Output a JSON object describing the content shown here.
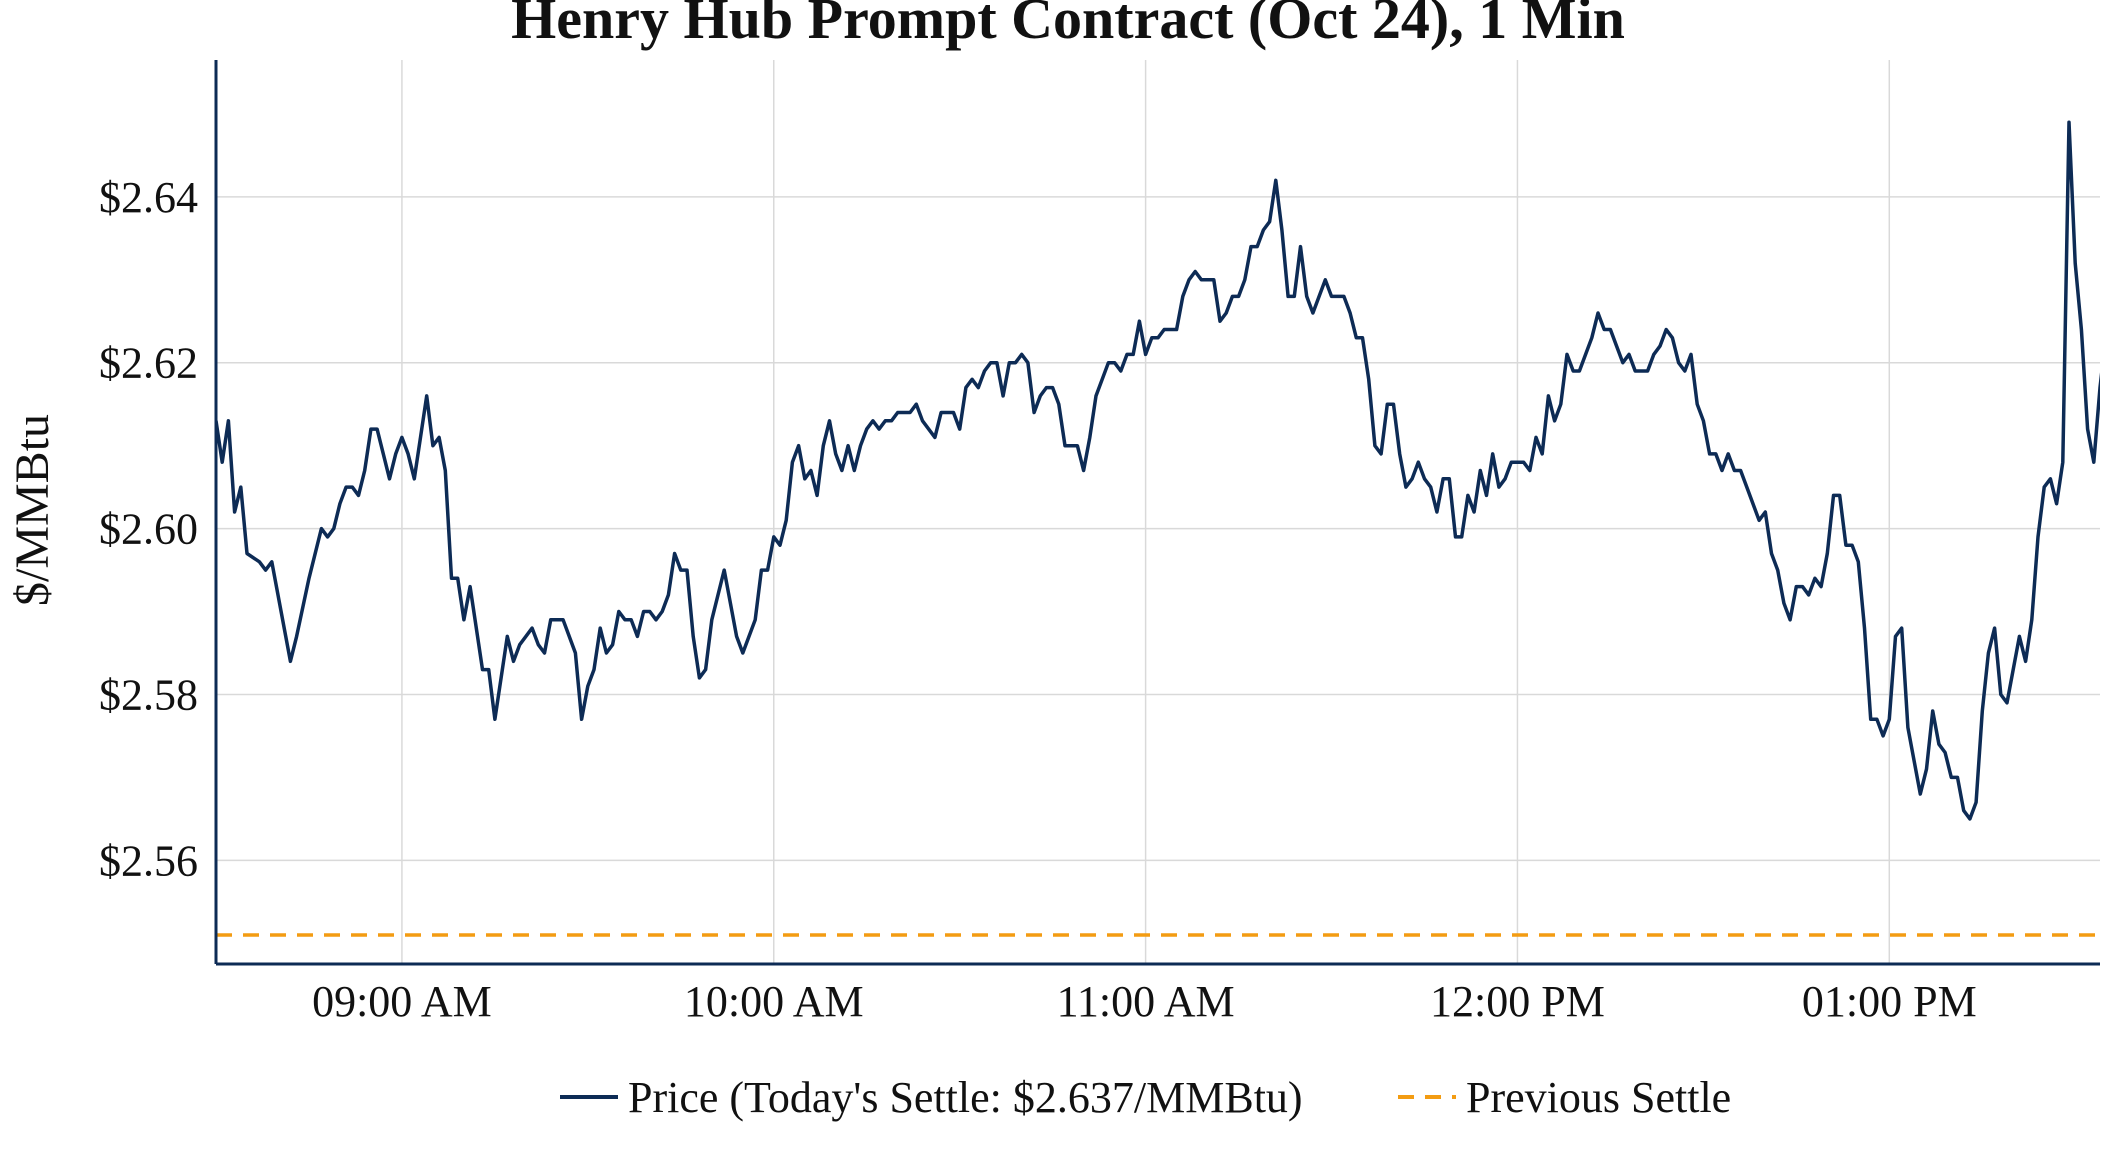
{
  "chart_data": {
    "type": "line",
    "title": "Henry Hub Prompt Contract (Oct 24), 1 Min",
    "xlabel": "",
    "ylabel": "$/MMBtu",
    "x_ticks": [
      "09:00 AM",
      "10:00 AM",
      "11:00 AM",
      "12:00 PM",
      "01:00 PM"
    ],
    "x_tick_minutes": [
      540,
      600,
      660,
      720,
      780
    ],
    "xlim_minutes": [
      510,
      814
    ],
    "ylim": [
      2.5475,
      2.6565
    ],
    "y_ticks": [
      2.56,
      2.58,
      2.6,
      2.62,
      2.64
    ],
    "y_tick_labels": [
      "$2.56",
      "$2.58",
      "$2.60",
      "$2.62",
      "$2.64"
    ],
    "grid": true,
    "legend_position": "bottom",
    "series": [
      {
        "name": "Price (Today's Settle: $2.637/MMBtu)",
        "color": "#0d2b55",
        "style": "solid",
        "points": [
          [
            510,
            2.613
          ],
          [
            511,
            2.608
          ],
          [
            512,
            2.613
          ],
          [
            513,
            2.602
          ],
          [
            514,
            2.605
          ],
          [
            515,
            2.597
          ],
          [
            517,
            2.596
          ],
          [
            518,
            2.595
          ],
          [
            519,
            2.596
          ],
          [
            522,
            2.584
          ],
          [
            523,
            2.587
          ],
          [
            525,
            2.594
          ],
          [
            527,
            2.6
          ],
          [
            528,
            2.599
          ],
          [
            529,
            2.6
          ],
          [
            530,
            2.603
          ],
          [
            531,
            2.605
          ],
          [
            532,
            2.605
          ],
          [
            533,
            2.604
          ],
          [
            534,
            2.607
          ],
          [
            535,
            2.612
          ],
          [
            536,
            2.612
          ],
          [
            537,
            2.609
          ],
          [
            538,
            2.606
          ],
          [
            539,
            2.609
          ],
          [
            540,
            2.611
          ],
          [
            541,
            2.609
          ],
          [
            542,
            2.606
          ],
          [
            543,
            2.611
          ],
          [
            544,
            2.616
          ],
          [
            545,
            2.61
          ],
          [
            546,
            2.611
          ],
          [
            547,
            2.607
          ],
          [
            548,
            2.594
          ],
          [
            549,
            2.594
          ],
          [
            550,
            2.589
          ],
          [
            551,
            2.593
          ],
          [
            553,
            2.583
          ],
          [
            554,
            2.583
          ],
          [
            555,
            2.577
          ],
          [
            556,
            2.582
          ],
          [
            557,
            2.587
          ],
          [
            558,
            2.584
          ],
          [
            559,
            2.586
          ],
          [
            561,
            2.588
          ],
          [
            562,
            2.586
          ],
          [
            563,
            2.585
          ],
          [
            564,
            2.589
          ],
          [
            566,
            2.589
          ],
          [
            568,
            2.585
          ],
          [
            569,
            2.577
          ],
          [
            570,
            2.581
          ],
          [
            571,
            2.583
          ],
          [
            572,
            2.588
          ],
          [
            573,
            2.585
          ],
          [
            574,
            2.586
          ],
          [
            575,
            2.59
          ],
          [
            576,
            2.589
          ],
          [
            577,
            2.589
          ],
          [
            578,
            2.587
          ],
          [
            579,
            2.59
          ],
          [
            580,
            2.59
          ],
          [
            581,
            2.589
          ],
          [
            582,
            2.59
          ],
          [
            583,
            2.592
          ],
          [
            584,
            2.597
          ],
          [
            585,
            2.595
          ],
          [
            586,
            2.595
          ],
          [
            587,
            2.587
          ],
          [
            588,
            2.582
          ],
          [
            589,
            2.583
          ],
          [
            590,
            2.589
          ],
          [
            592,
            2.595
          ],
          [
            593,
            2.591
          ],
          [
            594,
            2.587
          ],
          [
            595,
            2.585
          ],
          [
            596,
            2.587
          ],
          [
            597,
            2.589
          ],
          [
            598,
            2.595
          ],
          [
            599,
            2.595
          ],
          [
            600,
            2.599
          ],
          [
            601,
            2.598
          ],
          [
            602,
            2.601
          ],
          [
            603,
            2.608
          ],
          [
            604,
            2.61
          ],
          [
            605,
            2.606
          ],
          [
            606,
            2.607
          ],
          [
            607,
            2.604
          ],
          [
            608,
            2.61
          ],
          [
            609,
            2.613
          ],
          [
            610,
            2.609
          ],
          [
            611,
            2.607
          ],
          [
            612,
            2.61
          ],
          [
            613,
            2.607
          ],
          [
            614,
            2.61
          ],
          [
            615,
            2.612
          ],
          [
            616,
            2.613
          ],
          [
            617,
            2.612
          ],
          [
            618,
            2.613
          ],
          [
            619,
            2.613
          ],
          [
            620,
            2.614
          ],
          [
            622,
            2.614
          ],
          [
            623,
            2.615
          ],
          [
            624,
            2.613
          ],
          [
            626,
            2.611
          ],
          [
            627,
            2.614
          ],
          [
            629,
            2.614
          ],
          [
            630,
            2.612
          ],
          [
            631,
            2.617
          ],
          [
            632,
            2.618
          ],
          [
            633,
            2.617
          ],
          [
            634,
            2.619
          ],
          [
            635,
            2.62
          ],
          [
            636,
            2.62
          ],
          [
            637,
            2.616
          ],
          [
            638,
            2.62
          ],
          [
            639,
            2.62
          ],
          [
            640,
            2.621
          ],
          [
            641,
            2.62
          ],
          [
            642,
            2.614
          ],
          [
            643,
            2.616
          ],
          [
            644,
            2.617
          ],
          [
            645,
            2.617
          ],
          [
            646,
            2.615
          ],
          [
            647,
            2.61
          ],
          [
            649,
            2.61
          ],
          [
            650,
            2.607
          ],
          [
            651,
            2.611
          ],
          [
            652,
            2.616
          ],
          [
            653,
            2.618
          ],
          [
            654,
            2.62
          ],
          [
            655,
            2.62
          ],
          [
            656,
            2.619
          ],
          [
            657,
            2.621
          ],
          [
            658,
            2.621
          ],
          [
            659,
            2.625
          ],
          [
            660,
            2.621
          ],
          [
            661,
            2.623
          ],
          [
            662,
            2.623
          ],
          [
            663,
            2.624
          ],
          [
            665,
            2.624
          ],
          [
            666,
            2.628
          ],
          [
            667,
            2.63
          ],
          [
            668,
            2.631
          ],
          [
            669,
            2.63
          ],
          [
            671,
            2.63
          ],
          [
            672,
            2.625
          ],
          [
            673,
            2.626
          ],
          [
            674,
            2.628
          ],
          [
            675,
            2.628
          ],
          [
            676,
            2.63
          ],
          [
            677,
            2.634
          ],
          [
            678,
            2.634
          ],
          [
            679,
            2.636
          ],
          [
            680,
            2.637
          ],
          [
            681,
            2.642
          ],
          [
            682,
            2.636
          ],
          [
            683,
            2.628
          ],
          [
            684,
            2.628
          ],
          [
            685,
            2.634
          ],
          [
            686,
            2.628
          ],
          [
            687,
            2.626
          ],
          [
            688,
            2.628
          ],
          [
            689,
            2.63
          ],
          [
            690,
            2.628
          ],
          [
            692,
            2.628
          ],
          [
            693,
            2.626
          ],
          [
            694,
            2.623
          ],
          [
            695,
            2.623
          ],
          [
            696,
            2.618
          ],
          [
            697,
            2.61
          ],
          [
            698,
            2.609
          ],
          [
            699,
            2.615
          ],
          [
            700,
            2.615
          ],
          [
            701,
            2.609
          ],
          [
            702,
            2.605
          ],
          [
            703,
            2.606
          ],
          [
            704,
            2.608
          ],
          [
            705,
            2.606
          ],
          [
            706,
            2.605
          ],
          [
            707,
            2.602
          ],
          [
            708,
            2.606
          ],
          [
            709,
            2.606
          ],
          [
            710,
            2.599
          ],
          [
            711,
            2.599
          ],
          [
            712,
            2.604
          ],
          [
            713,
            2.602
          ],
          [
            714,
            2.607
          ],
          [
            715,
            2.604
          ],
          [
            716,
            2.609
          ],
          [
            717,
            2.605
          ],
          [
            718,
            2.606
          ],
          [
            719,
            2.608
          ],
          [
            721,
            2.608
          ],
          [
            722,
            2.607
          ],
          [
            723,
            2.611
          ],
          [
            724,
            2.609
          ],
          [
            725,
            2.616
          ],
          [
            726,
            2.613
          ],
          [
            727,
            2.615
          ],
          [
            728,
            2.621
          ],
          [
            729,
            2.619
          ],
          [
            730,
            2.619
          ],
          [
            731,
            2.621
          ],
          [
            732,
            2.623
          ],
          [
            733,
            2.626
          ],
          [
            734,
            2.624
          ],
          [
            735,
            2.624
          ],
          [
            736,
            2.622
          ],
          [
            737,
            2.62
          ],
          [
            738,
            2.621
          ],
          [
            739,
            2.619
          ],
          [
            741,
            2.619
          ],
          [
            742,
            2.621
          ],
          [
            743,
            2.622
          ],
          [
            744,
            2.624
          ],
          [
            745,
            2.623
          ],
          [
            746,
            2.62
          ],
          [
            747,
            2.619
          ],
          [
            748,
            2.621
          ],
          [
            749,
            2.615
          ],
          [
            750,
            2.613
          ],
          [
            751,
            2.609
          ],
          [
            752,
            2.609
          ],
          [
            753,
            2.607
          ],
          [
            754,
            2.609
          ],
          [
            755,
            2.607
          ],
          [
            756,
            2.607
          ],
          [
            757,
            2.605
          ],
          [
            759,
            2.601
          ],
          [
            760,
            2.602
          ],
          [
            761,
            2.597
          ],
          [
            762,
            2.595
          ],
          [
            763,
            2.591
          ],
          [
            764,
            2.589
          ],
          [
            765,
            2.593
          ],
          [
            766,
            2.593
          ],
          [
            767,
            2.592
          ],
          [
            768,
            2.594
          ],
          [
            769,
            2.593
          ],
          [
            770,
            2.597
          ],
          [
            771,
            2.604
          ],
          [
            772,
            2.604
          ],
          [
            773,
            2.598
          ],
          [
            774,
            2.598
          ],
          [
            775,
            2.596
          ],
          [
            776,
            2.588
          ],
          [
            777,
            2.577
          ],
          [
            778,
            2.577
          ],
          [
            779,
            2.575
          ],
          [
            780,
            2.577
          ],
          [
            781,
            2.587
          ],
          [
            782,
            2.588
          ],
          [
            783,
            2.576
          ],
          [
            784,
            2.572
          ],
          [
            785,
            2.568
          ],
          [
            786,
            2.571
          ],
          [
            787,
            2.578
          ],
          [
            788,
            2.574
          ],
          [
            789,
            2.573
          ],
          [
            790,
            2.57
          ],
          [
            791,
            2.57
          ],
          [
            792,
            2.566
          ],
          [
            793,
            2.565
          ],
          [
            794,
            2.567
          ],
          [
            795,
            2.578
          ],
          [
            796,
            2.585
          ],
          [
            797,
            2.588
          ],
          [
            798,
            2.58
          ],
          [
            799,
            2.579
          ],
          [
            800,
            2.583
          ],
          [
            801,
            2.587
          ],
          [
            802,
            2.584
          ],
          [
            803,
            2.589
          ],
          [
            804,
            2.599
          ],
          [
            805,
            2.605
          ],
          [
            806,
            2.606
          ],
          [
            807,
            2.603
          ],
          [
            808,
            2.608
          ],
          [
            809,
            2.649
          ],
          [
            810,
            2.632
          ],
          [
            811,
            2.624
          ],
          [
            812,
            2.612
          ],
          [
            813,
            2.608
          ],
          [
            814,
            2.617
          ],
          [
            816,
            2.63
          ]
        ]
      },
      {
        "name": "Previous Settle",
        "color": "#f39c12",
        "style": "dashed",
        "value": 2.551
      }
    ]
  }
}
